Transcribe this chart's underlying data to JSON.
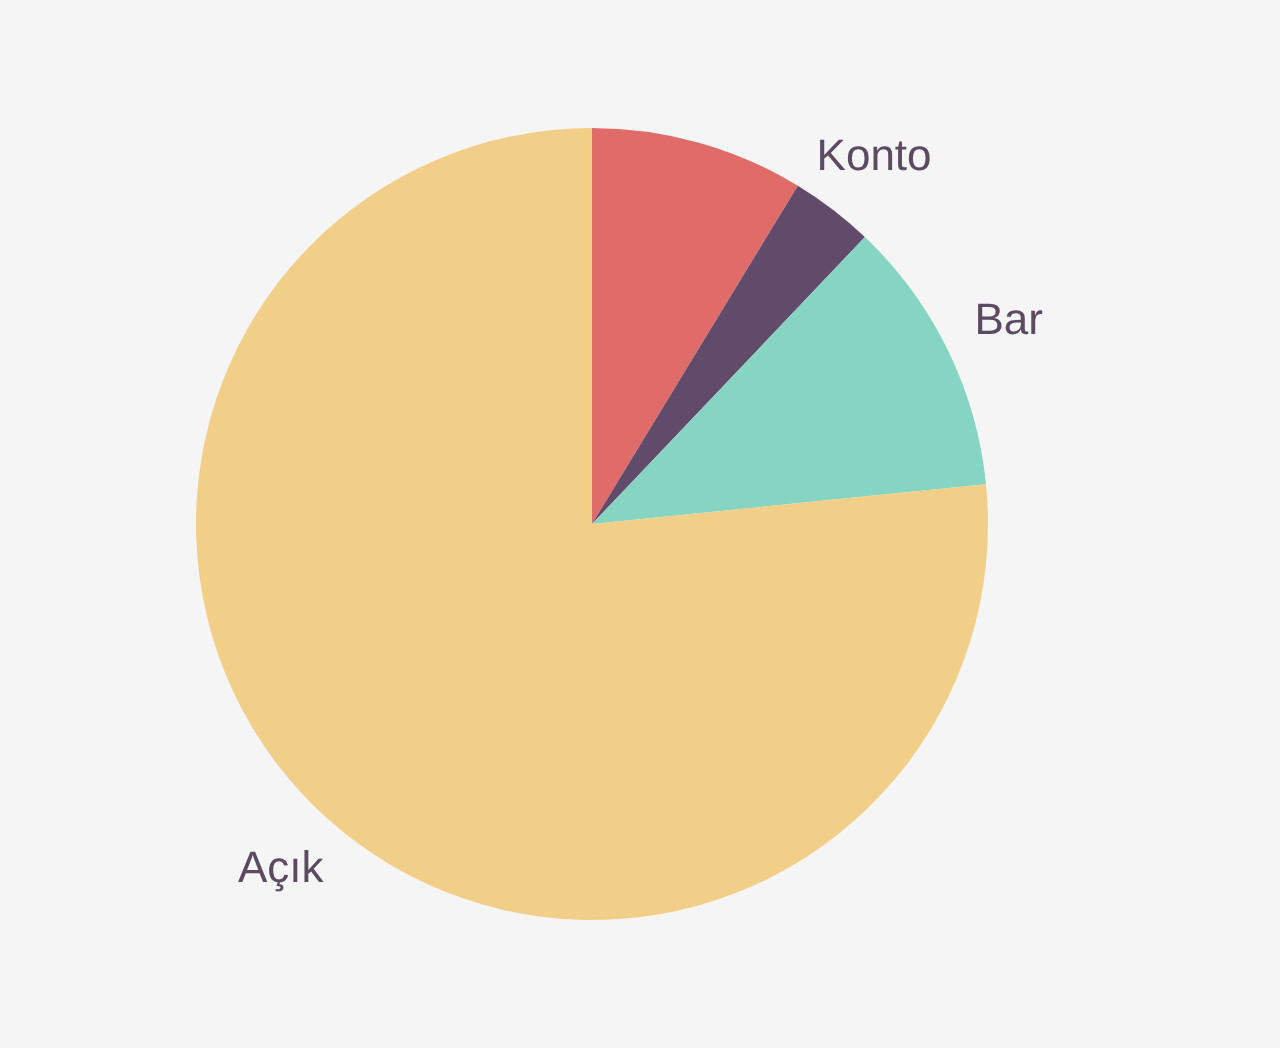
{
  "chart_data": {
    "type": "pie",
    "categories": [
      null,
      "Konto",
      "Bar",
      "Açık"
    ],
    "values": [
      8.7,
      3.4,
      11.3,
      76.6
    ],
    "colors": [
      "#e06c6a",
      "#614a6a",
      "#86d4c2",
      "#f2cf88"
    ]
  }
}
